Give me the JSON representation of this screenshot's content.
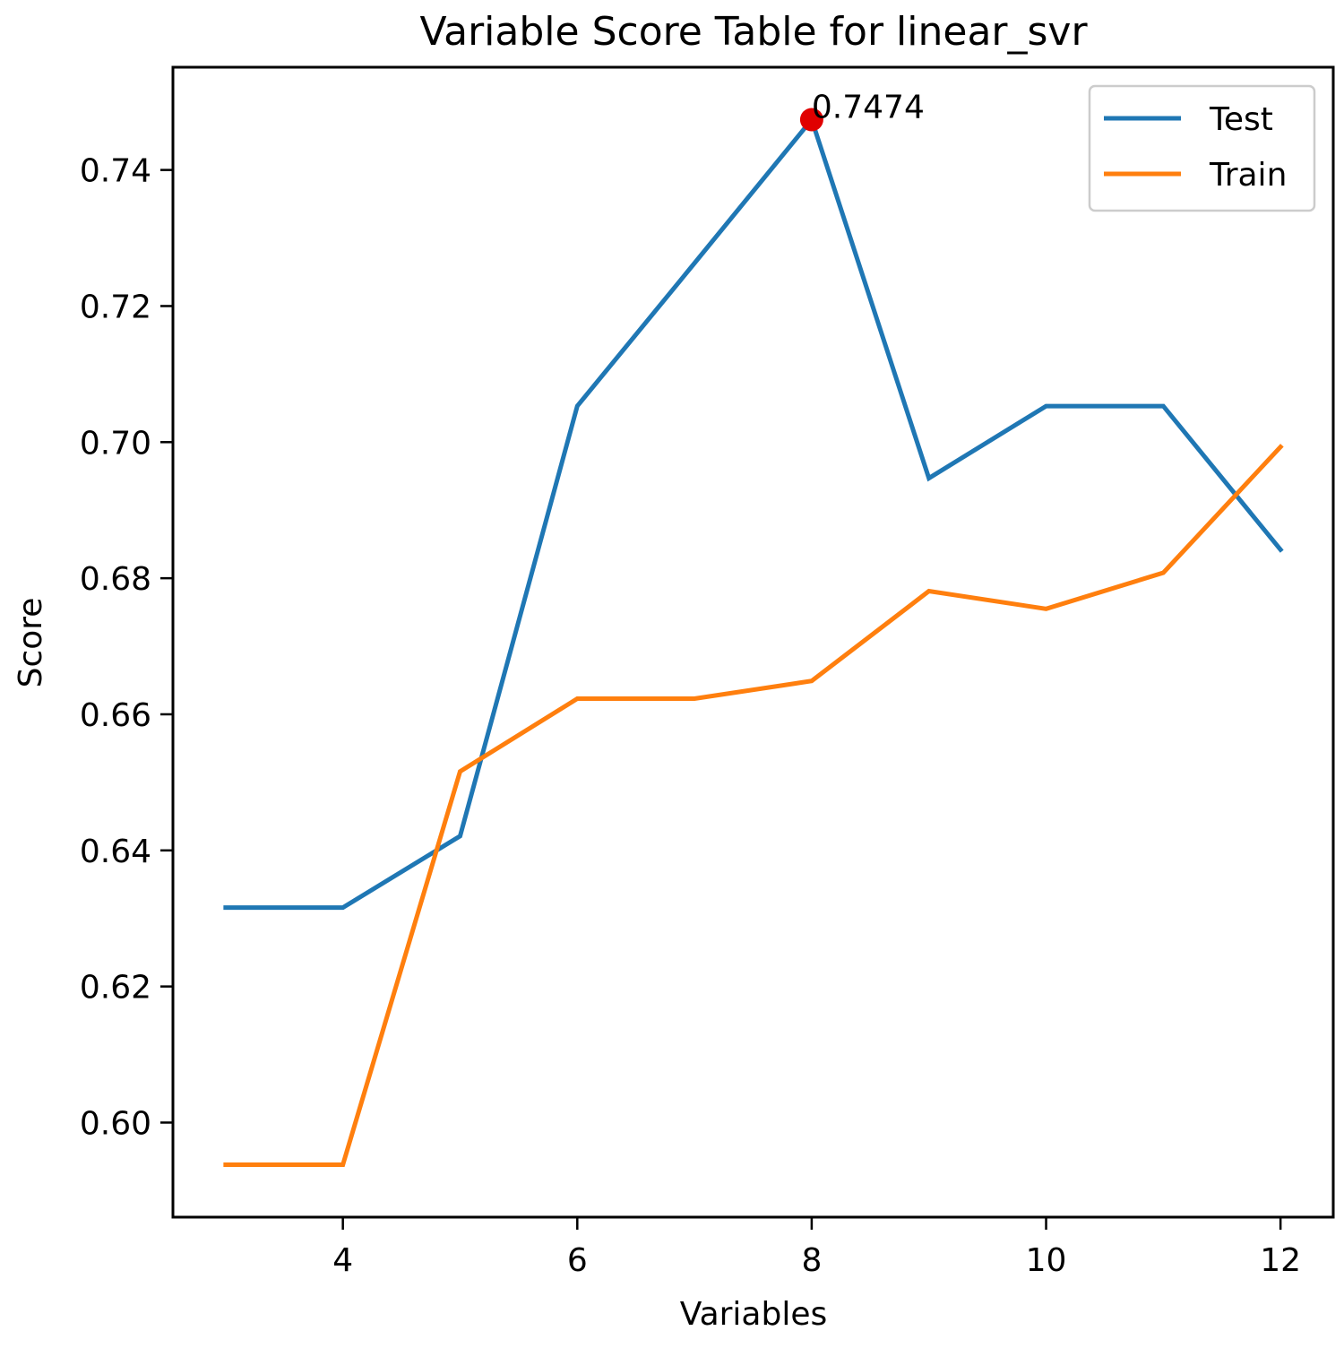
{
  "chart_data": {
    "type": "line",
    "title": "Variable Score Table for linear_svr",
    "xlabel": "Variables",
    "ylabel": "Score",
    "x": [
      3,
      4,
      5,
      6,
      7,
      8,
      9,
      10,
      11,
      12
    ],
    "series": [
      {
        "name": "Test",
        "color": "#1f77b4",
        "values": [
          0.6316,
          0.6316,
          0.6421,
          0.7053,
          0.7263,
          0.7474,
          0.6947,
          0.7053,
          0.7053,
          0.6842
        ]
      },
      {
        "name": "Train",
        "color": "#ff7f0e",
        "values": [
          0.5938,
          0.5938,
          0.6516,
          0.6623,
          0.6623,
          0.6649,
          0.6781,
          0.6755,
          0.6808,
          0.6993
        ]
      }
    ],
    "xlim": [
      2.55,
      12.45
    ],
    "ylim": [
      0.5861,
      0.7551
    ],
    "xticks": [
      4,
      6,
      8,
      10,
      12
    ],
    "xtick_labels": [
      "4",
      "6",
      "8",
      "10",
      "12"
    ],
    "yticks": [
      0.6,
      0.62,
      0.64,
      0.66,
      0.68,
      0.7,
      0.72,
      0.74
    ],
    "ytick_labels": [
      "0.60",
      "0.62",
      "0.64",
      "0.66",
      "0.68",
      "0.70",
      "0.72",
      "0.74"
    ],
    "grid": false,
    "legend_position": "top-right",
    "annotation": {
      "x": 8,
      "y": 0.7474,
      "text": "0.7474",
      "marker_color": "#e00000"
    }
  }
}
